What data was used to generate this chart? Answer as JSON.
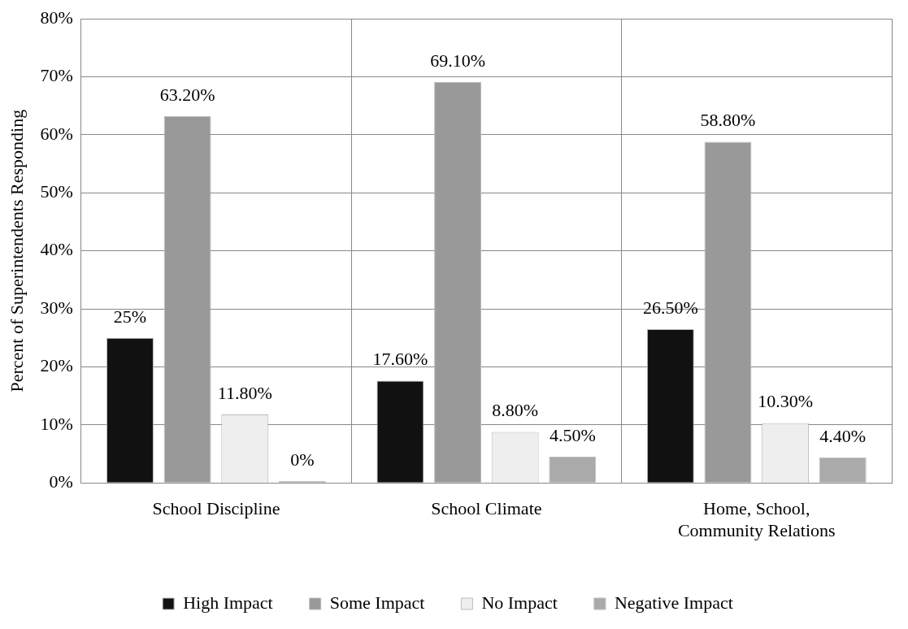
{
  "chart_data": {
    "type": "bar",
    "ylabel": "Percent of Superintendents Responding",
    "categories": [
      "School Discipline",
      "School Climate",
      "Home, School, Community Relations"
    ],
    "series": [
      {
        "name": "High Impact",
        "color": "#111111",
        "values": [
          25,
          17.6,
          26.5
        ],
        "value_labels": [
          "25%",
          "17.60%",
          "26.50%"
        ]
      },
      {
        "name": "Some Impact",
        "color": "#999999",
        "values": [
          63.2,
          69.1,
          58.8
        ],
        "value_labels": [
          "63.20%",
          "69.10%",
          "58.80%"
        ]
      },
      {
        "name": "No Impact",
        "color": "#eeeeee",
        "values": [
          11.8,
          8.8,
          10.3
        ],
        "value_labels": [
          "11.80%",
          "8.80%",
          "10.30%"
        ]
      },
      {
        "name": "Negative Impact",
        "color": "#aaaaaa",
        "values": [
          0.3,
          4.5,
          4.4
        ],
        "value_labels": [
          "0%",
          "4.50%",
          "4.40%"
        ]
      }
    ],
    "ylim": [
      0,
      80
    ],
    "yticks": [
      {
        "value": 0,
        "label": "0%"
      },
      {
        "value": 10,
        "label": "10%"
      },
      {
        "value": 20,
        "label": "20%"
      },
      {
        "value": 30,
        "label": "30%"
      },
      {
        "value": 40,
        "label": "40%"
      },
      {
        "value": 50,
        "label": "50%"
      },
      {
        "value": 60,
        "label": "60%"
      },
      {
        "value": 70,
        "label": "70%"
      },
      {
        "value": 80,
        "label": "80%"
      }
    ],
    "grid": true,
    "legend": "bottom"
  }
}
